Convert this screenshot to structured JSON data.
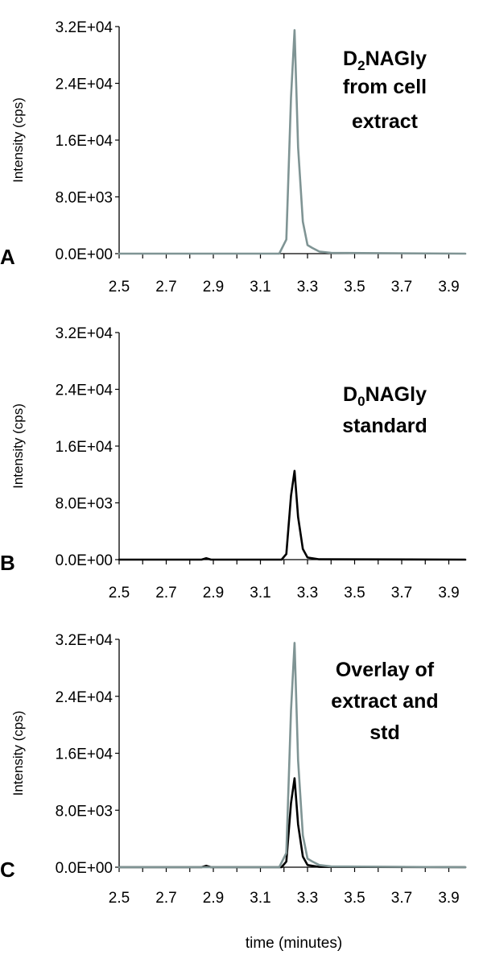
{
  "chart_data": [
    {
      "type": "line",
      "panel_label": "A",
      "annotation": {
        "lines": [
          {
            "parts": [
              "D",
              "2",
              "NAGly"
            ]
          },
          {
            "parts": [
              "from cell"
            ]
          },
          {
            "parts": [
              "extract"
            ]
          }
        ]
      },
      "ylabel": "Intensity (cps)",
      "xlabel": "",
      "ylim": [
        0,
        32000
      ],
      "xlim": [
        2.5,
        3.97
      ],
      "y_ticks": [
        "0.0E+00",
        "8.0E+03",
        "1.6E+04",
        "2.4E+04",
        "3.2E+04"
      ],
      "x_ticks": [
        "2.5",
        "2.7",
        "2.9",
        "3.1",
        "3.3",
        "3.5",
        "3.7",
        "3.9"
      ],
      "series": [
        {
          "color": "#7f9494",
          "x": [
            2.5,
            3.18,
            3.21,
            3.23,
            3.245,
            3.26,
            3.28,
            3.3,
            3.32,
            3.35,
            3.4,
            3.97
          ],
          "y": [
            0,
            0,
            2000,
            22000,
            31500,
            15000,
            4500,
            1200,
            800,
            300,
            100,
            0
          ]
        }
      ]
    },
    {
      "type": "line",
      "panel_label": "B",
      "annotation": {
        "lines": [
          {
            "parts": [
              "D",
              "0",
              "NAGly"
            ]
          },
          {
            "parts": [
              "standard"
            ]
          }
        ]
      },
      "ylabel": "Intensity (cps)",
      "xlabel": "",
      "ylim": [
        0,
        32000
      ],
      "xlim": [
        2.5,
        3.97
      ],
      "y_ticks": [
        "0.0E+00",
        "8.0E+03",
        "1.6E+04",
        "2.4E+04",
        "3.2E+04"
      ],
      "x_ticks": [
        "2.5",
        "2.7",
        "2.9",
        "3.1",
        "3.3",
        "3.5",
        "3.7",
        "3.9"
      ],
      "series": [
        {
          "color": "#000000",
          "x": [
            2.5,
            2.85,
            2.87,
            2.89,
            3.19,
            3.21,
            3.23,
            3.245,
            3.26,
            3.28,
            3.3,
            3.35,
            3.97
          ],
          "y": [
            0,
            0,
            200,
            0,
            0,
            800,
            9000,
            12500,
            6000,
            1500,
            300,
            50,
            0
          ]
        }
      ]
    },
    {
      "type": "line",
      "panel_label": "C",
      "annotation": {
        "lines": [
          {
            "parts": [
              "Overlay of"
            ]
          },
          {
            "parts": [
              "extract and"
            ]
          },
          {
            "parts": [
              "std"
            ]
          }
        ]
      },
      "ylabel": "Intensity (cps)",
      "xlabel": "time (minutes)",
      "ylim": [
        0,
        32000
      ],
      "xlim": [
        2.5,
        3.97
      ],
      "y_ticks": [
        "0.0E+00",
        "8.0E+03",
        "1.6E+04",
        "2.4E+04",
        "3.2E+04"
      ],
      "x_ticks": [
        "2.5",
        "2.7",
        "2.9",
        "3.1",
        "3.3",
        "3.5",
        "3.7",
        "3.9"
      ],
      "series": [
        {
          "color": "#000000",
          "x": [
            2.5,
            2.85,
            2.87,
            2.89,
            3.19,
            3.21,
            3.23,
            3.245,
            3.26,
            3.28,
            3.3,
            3.35,
            3.97
          ],
          "y": [
            0,
            0,
            200,
            0,
            0,
            800,
            9000,
            12500,
            6000,
            1500,
            300,
            50,
            0
          ]
        },
        {
          "color": "#7f9494",
          "x": [
            2.5,
            3.18,
            3.21,
            3.23,
            3.245,
            3.26,
            3.28,
            3.3,
            3.32,
            3.35,
            3.4,
            3.97
          ],
          "y": [
            0,
            0,
            2000,
            22000,
            31500,
            15000,
            4500,
            1200,
            800,
            300,
            100,
            0
          ]
        }
      ]
    }
  ]
}
